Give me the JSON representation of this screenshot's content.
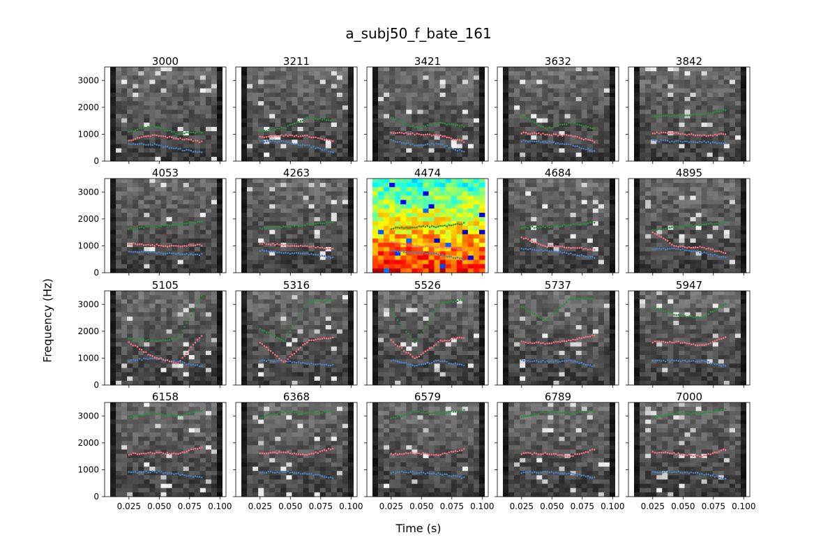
{
  "chart_data": {
    "type": "scatter",
    "title": "a_subj50_f_bate_161",
    "xlabel": "Time (s)",
    "ylabel": "Frequency (Hz)",
    "xlim": [
      0.005,
      0.105
    ],
    "ylim": [
      0,
      3500
    ],
    "x_ticks": [
      "0.025",
      "0.050",
      "0.075",
      "0.100"
    ],
    "y_ticks": [
      "0",
      "1000",
      "2000",
      "3000"
    ],
    "layout": {
      "rows": 4,
      "cols": 5
    },
    "background": "spectrogram (grayscale; colormap 'jet' on the highlighted panel)",
    "highlighted_panel": "4474",
    "series_colors": {
      "F1": "#4a7fc0",
      "F2": "#f07080",
      "F3": "#2e8b3e"
    },
    "panels": [
      {
        "title": "3000",
        "F1": [
          [
            0.025,
            650
          ],
          [
            0.045,
            620
          ],
          [
            0.065,
            450
          ],
          [
            0.085,
            320
          ]
        ],
        "F2": [
          [
            0.025,
            780
          ],
          [
            0.045,
            960
          ],
          [
            0.065,
            850
          ],
          [
            0.085,
            720
          ]
        ],
        "F3": [
          [
            0.025,
            1100
          ],
          [
            0.045,
            1330
          ],
          [
            0.065,
            1020
          ],
          [
            0.085,
            1080
          ]
        ]
      },
      {
        "title": "3211",
        "F1": [
          [
            0.025,
            750
          ],
          [
            0.045,
            720
          ],
          [
            0.065,
            560
          ],
          [
            0.085,
            350
          ]
        ],
        "F2": [
          [
            0.025,
            900
          ],
          [
            0.045,
            950
          ],
          [
            0.065,
            930
          ],
          [
            0.085,
            740
          ]
        ],
        "F3": [
          [
            0.025,
            1100
          ],
          [
            0.045,
            1230
          ],
          [
            0.065,
            1620
          ],
          [
            0.085,
            1520
          ]
        ]
      },
      {
        "title": "3421",
        "F1": [
          [
            0.025,
            780
          ],
          [
            0.045,
            600
          ],
          [
            0.065,
            640
          ],
          [
            0.085,
            330
          ]
        ],
        "F2": [
          [
            0.025,
            1080
          ],
          [
            0.045,
            1000
          ],
          [
            0.065,
            950
          ],
          [
            0.085,
            730
          ]
        ],
        "F3": [
          [
            0.025,
            1620
          ],
          [
            0.045,
            1240
          ],
          [
            0.065,
            1430
          ],
          [
            0.085,
            1300
          ]
        ]
      },
      {
        "title": "3632",
        "F1": [
          [
            0.025,
            760
          ],
          [
            0.045,
            720
          ],
          [
            0.065,
            600
          ],
          [
            0.085,
            380
          ]
        ],
        "F2": [
          [
            0.025,
            1050
          ],
          [
            0.045,
            1000
          ],
          [
            0.065,
            950
          ],
          [
            0.085,
            720
          ]
        ],
        "F3": [
          [
            0.025,
            1680
          ],
          [
            0.045,
            1200
          ],
          [
            0.065,
            1430
          ],
          [
            0.085,
            1200
          ]
        ]
      },
      {
        "title": "3842",
        "F1": [
          [
            0.025,
            760
          ],
          [
            0.045,
            730
          ],
          [
            0.065,
            720
          ],
          [
            0.085,
            650
          ]
        ],
        "F2": [
          [
            0.025,
            1050
          ],
          [
            0.045,
            1030
          ],
          [
            0.065,
            950
          ],
          [
            0.085,
            1000
          ]
        ],
        "F3": [
          [
            0.025,
            1650
          ],
          [
            0.045,
            1680
          ],
          [
            0.065,
            1720
          ],
          [
            0.085,
            1900
          ]
        ]
      },
      {
        "title": "4053",
        "F1": [
          [
            0.025,
            800
          ],
          [
            0.045,
            750
          ],
          [
            0.065,
            700
          ],
          [
            0.085,
            680
          ]
        ],
        "F2": [
          [
            0.025,
            1080
          ],
          [
            0.045,
            1030
          ],
          [
            0.065,
            980
          ],
          [
            0.085,
            1030
          ]
        ],
        "F3": [
          [
            0.025,
            1650
          ],
          [
            0.045,
            1700
          ],
          [
            0.065,
            1800
          ],
          [
            0.085,
            1900
          ]
        ]
      },
      {
        "title": "4263",
        "F1": [
          [
            0.025,
            820
          ],
          [
            0.045,
            740
          ],
          [
            0.065,
            700
          ],
          [
            0.085,
            550
          ]
        ],
        "F2": [
          [
            0.025,
            1100
          ],
          [
            0.045,
            1030
          ],
          [
            0.065,
            980
          ],
          [
            0.085,
            880
          ]
        ],
        "F3": [
          [
            0.025,
            1650
          ],
          [
            0.045,
            1700
          ],
          [
            0.065,
            1800
          ],
          [
            0.085,
            1880
          ]
        ]
      },
      {
        "title": "4474",
        "F1": [
          [
            0.025,
            800
          ],
          [
            0.045,
            760
          ],
          [
            0.065,
            670
          ],
          [
            0.085,
            500
          ]
        ],
        "F2": [
          [
            0.025,
            1150
          ],
          [
            0.045,
            1000
          ],
          [
            0.065,
            950
          ],
          [
            0.085,
            880
          ]
        ],
        "F3": [
          [
            0.025,
            1650
          ],
          [
            0.045,
            1700
          ],
          [
            0.065,
            1720
          ],
          [
            0.085,
            1830
          ]
        ]
      },
      {
        "title": "4684",
        "F1": [
          [
            0.025,
            880
          ],
          [
            0.045,
            820
          ],
          [
            0.065,
            700
          ],
          [
            0.085,
            560
          ]
        ],
        "F2": [
          [
            0.025,
            1320
          ],
          [
            0.045,
            980
          ],
          [
            0.065,
            950
          ],
          [
            0.085,
            870
          ]
        ],
        "F3": [
          [
            0.025,
            1680
          ],
          [
            0.045,
            1700
          ],
          [
            0.065,
            1780
          ],
          [
            0.085,
            1860
          ]
        ]
      },
      {
        "title": "4895",
        "F1": [
          [
            0.025,
            880
          ],
          [
            0.045,
            900
          ],
          [
            0.065,
            760
          ],
          [
            0.085,
            560
          ]
        ],
        "F2": [
          [
            0.025,
            1520
          ],
          [
            0.045,
            950
          ],
          [
            0.065,
            950
          ],
          [
            0.085,
            730
          ]
        ],
        "F3": [
          [
            0.025,
            1580
          ],
          [
            0.045,
            1700
          ],
          [
            0.065,
            1780
          ],
          [
            0.085,
            1880
          ]
        ]
      },
      {
        "title": "5105",
        "F1": [
          [
            0.025,
            900
          ],
          [
            0.045,
            1000
          ],
          [
            0.065,
            850
          ],
          [
            0.085,
            700
          ]
        ],
        "F2": [
          [
            0.025,
            1580
          ],
          [
            0.045,
            1050
          ],
          [
            0.065,
            800
          ],
          [
            0.085,
            1850
          ]
        ],
        "F3": [
          [
            0.025,
            1700
          ],
          [
            0.045,
            1650
          ],
          [
            0.065,
            1700
          ],
          [
            0.085,
            3300
          ]
        ]
      },
      {
        "title": "5316",
        "F1": [
          [
            0.025,
            900
          ],
          [
            0.045,
            900
          ],
          [
            0.065,
            800
          ],
          [
            0.085,
            740
          ]
        ],
        "F2": [
          [
            0.025,
            1600
          ],
          [
            0.045,
            850
          ],
          [
            0.065,
            1650
          ],
          [
            0.085,
            1750
          ]
        ],
        "F3": [
          [
            0.025,
            2100
          ],
          [
            0.045,
            1650
          ],
          [
            0.065,
            3100
          ],
          [
            0.085,
            3150
          ]
        ]
      },
      {
        "title": "5526",
        "F1": [
          [
            0.025,
            920
          ],
          [
            0.045,
            720
          ],
          [
            0.065,
            900
          ],
          [
            0.085,
            720
          ]
        ],
        "F2": [
          [
            0.025,
            1650
          ],
          [
            0.045,
            980
          ],
          [
            0.065,
            1620
          ],
          [
            0.085,
            1770
          ]
        ],
        "F3": [
          [
            0.025,
            2750
          ],
          [
            0.045,
            1550
          ],
          [
            0.065,
            3050
          ],
          [
            0.085,
            3150
          ]
        ]
      },
      {
        "title": "5737",
        "F1": [
          [
            0.025,
            900
          ],
          [
            0.045,
            880
          ],
          [
            0.065,
            900
          ],
          [
            0.085,
            700
          ]
        ],
        "F2": [
          [
            0.025,
            1600
          ],
          [
            0.045,
            1550
          ],
          [
            0.065,
            1650
          ],
          [
            0.085,
            1850
          ]
        ],
        "F3": [
          [
            0.025,
            2900
          ],
          [
            0.045,
            2400
          ],
          [
            0.065,
            3200
          ],
          [
            0.085,
            3200
          ]
        ]
      },
      {
        "title": "5947",
        "F1": [
          [
            0.025,
            900
          ],
          [
            0.045,
            900
          ],
          [
            0.065,
            900
          ],
          [
            0.085,
            700
          ]
        ],
        "F2": [
          [
            0.025,
            1600
          ],
          [
            0.045,
            1600
          ],
          [
            0.065,
            1450
          ],
          [
            0.085,
            1800
          ]
        ],
        "F3": [
          [
            0.025,
            2900
          ],
          [
            0.045,
            2600
          ],
          [
            0.065,
            2500
          ],
          [
            0.085,
            3000
          ]
        ]
      },
      {
        "title": "6158",
        "F1": [
          [
            0.025,
            900
          ],
          [
            0.045,
            920
          ],
          [
            0.065,
            850
          ],
          [
            0.085,
            700
          ]
        ],
        "F2": [
          [
            0.025,
            1580
          ],
          [
            0.045,
            1620
          ],
          [
            0.065,
            1600
          ],
          [
            0.085,
            1850
          ]
        ],
        "F3": [
          [
            0.025,
            2950
          ],
          [
            0.045,
            3100
          ],
          [
            0.065,
            3000
          ],
          [
            0.085,
            3200
          ]
        ]
      },
      {
        "title": "6368",
        "F1": [
          [
            0.025,
            900
          ],
          [
            0.045,
            920
          ],
          [
            0.065,
            850
          ],
          [
            0.085,
            700
          ]
        ],
        "F2": [
          [
            0.025,
            1600
          ],
          [
            0.045,
            1650
          ],
          [
            0.065,
            1550
          ],
          [
            0.085,
            1800
          ]
        ],
        "F3": [
          [
            0.025,
            2950
          ],
          [
            0.045,
            3150
          ],
          [
            0.065,
            3100
          ],
          [
            0.085,
            3150
          ]
        ]
      },
      {
        "title": "6579",
        "F1": [
          [
            0.025,
            900
          ],
          [
            0.045,
            900
          ],
          [
            0.065,
            850
          ],
          [
            0.085,
            700
          ]
        ],
        "F2": [
          [
            0.025,
            1580
          ],
          [
            0.045,
            1620
          ],
          [
            0.065,
            1550
          ],
          [
            0.085,
            1750
          ]
        ],
        "F3": [
          [
            0.025,
            2900
          ],
          [
            0.045,
            3150
          ],
          [
            0.065,
            3100
          ],
          [
            0.085,
            3200
          ]
        ]
      },
      {
        "title": "6789",
        "F1": [
          [
            0.025,
            900
          ],
          [
            0.045,
            900
          ],
          [
            0.065,
            850
          ],
          [
            0.085,
            700
          ]
        ],
        "F2": [
          [
            0.025,
            1600
          ],
          [
            0.045,
            1600
          ],
          [
            0.065,
            1500
          ],
          [
            0.085,
            1750
          ]
        ],
        "F3": [
          [
            0.025,
            2950
          ],
          [
            0.045,
            3150
          ],
          [
            0.065,
            3100
          ],
          [
            0.085,
            3200
          ]
        ]
      },
      {
        "title": "7000",
        "F1": [
          [
            0.025,
            900
          ],
          [
            0.045,
            920
          ],
          [
            0.065,
            850
          ],
          [
            0.085,
            680
          ]
        ],
        "F2": [
          [
            0.025,
            1650
          ],
          [
            0.045,
            1600
          ],
          [
            0.065,
            1500
          ],
          [
            0.085,
            1750
          ]
        ],
        "F3": [
          [
            0.025,
            2950
          ],
          [
            0.045,
            3100
          ],
          [
            0.065,
            3100
          ],
          [
            0.085,
            3250
          ]
        ]
      }
    ]
  }
}
